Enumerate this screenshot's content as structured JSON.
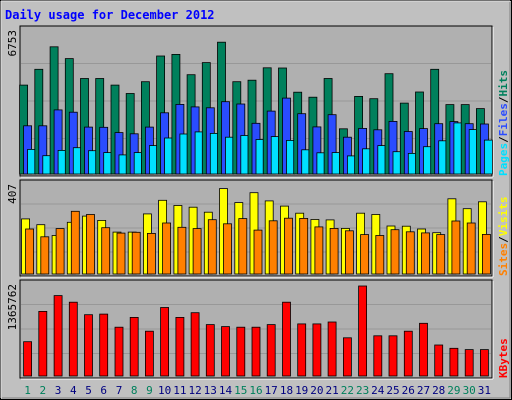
{
  "chart_data": {
    "type": "bar",
    "title": "Daily usage for December 2012",
    "days": [
      "1",
      "2",
      "3",
      "4",
      "5",
      "6",
      "7",
      "8",
      "9",
      "10",
      "11",
      "12",
      "13",
      "14",
      "15",
      "16",
      "17",
      "18",
      "19",
      "20",
      "21",
      "22",
      "23",
      "24",
      "25",
      "26",
      "27",
      "28",
      "29",
      "30",
      "31"
    ],
    "weekend_days": [
      "1",
      "2",
      "8",
      "9",
      "15",
      "16",
      "22",
      "23",
      "29",
      "30"
    ],
    "panels": [
      {
        "id": "top",
        "max_label": "6753",
        "ymax": 6753,
        "series": [
          {
            "name": "Hits",
            "color": "#00805c",
            "values": [
              4230,
              4980,
              6050,
              5490,
              4540,
              4540,
              4230,
              3830,
              4390,
              5610,
              5690,
              4720,
              5300,
              6270,
              4390,
              4460,
              5050,
              5040,
              3890,
              3650,
              4540,
              2150,
              3690,
              3580,
              4770,
              3370,
              3900,
              4980,
              3300,
              3300,
              3110
            ]
          },
          {
            "name": "Files",
            "color": "#2a4cff",
            "values": [
              2290,
              2290,
              3050,
              2940,
              2230,
              2220,
              1970,
              1910,
              2230,
              2910,
              3310,
              3190,
              3150,
              3440,
              3330,
              2410,
              2990,
              3610,
              2870,
              2240,
              2820,
              1750,
              2170,
              2100,
              2500,
              2020,
              2160,
              2390,
              2490,
              2390,
              2380
            ]
          },
          {
            "name": "Pages",
            "color": "#00e0ff",
            "values": [
              1170,
              870,
              1120,
              1250,
              1110,
              1020,
              910,
              1020,
              1350,
              1710,
              1900,
              2000,
              1930,
              1750,
              1830,
              1640,
              1780,
              1600,
              1150,
              1010,
              1020,
              860,
              1200,
              1350,
              1060,
              980,
              1300,
              1580,
              2430,
              2110,
              1610
            ]
          }
        ]
      },
      {
        "id": "mid",
        "max_label": "407",
        "ymax": 407,
        "series": [
          {
            "name": "Visits",
            "color": "#ffff00",
            "values": [
              255,
              228,
              178,
              239,
              268,
              248,
              194,
              194,
              278,
              341,
              317,
              309,
              286,
              395,
              330,
              376,
              338,
              314,
              281,
              252,
              250,
              211,
              281,
              275,
              222,
              221,
              208,
              191,
              348,
              302,
              334
            ]
          },
          {
            "name": "Sites",
            "color": "#ff8000",
            "values": [
              208,
              172,
              210,
              290,
              275,
              214,
              189,
              193,
              188,
              236,
              216,
              210,
              251,
              232,
              256,
              203,
              246,
              258,
              257,
              218,
              211,
              200,
              182,
              178,
              205,
              195,
              190,
              182,
              245,
              236,
              183
            ]
          }
        ]
      },
      {
        "id": "bot",
        "max_label": "1365762",
        "ymax": 1365762,
        "series": [
          {
            "name": "KBytes",
            "color": "#ff0000",
            "values": [
              520000,
              980000,
              1220000,
              1120000,
              930000,
              940000,
              740000,
              890000,
              680000,
              1040000,
              890000,
              960000,
              780000,
              750000,
              740000,
              740000,
              780000,
              1120000,
              790000,
              790000,
              820000,
              580000,
              1365762,
              610000,
              610000,
              680000,
              800000,
              470000,
              420000,
              400000,
              400000
            ]
          }
        ]
      }
    ],
    "legend_labels": [
      {
        "text": "Pages",
        "color": "#00e0ff"
      },
      {
        "text": "/",
        "color": "#000000"
      },
      {
        "text": "Files",
        "color": "#2a4cff"
      },
      {
        "text": "/",
        "color": "#000000"
      },
      {
        "text": "Hits",
        "color": "#00805c"
      },
      {
        "text": "Sites",
        "color": "#ff8000"
      },
      {
        "text": "/",
        "color": "#000000"
      },
      {
        "text": "Visits",
        "color": "#ffff00"
      },
      {
        "text": "KBytes",
        "color": "#ff0000"
      }
    ],
    "grid": true,
    "colors": {
      "title": "#0000ff",
      "weekday": "#000080",
      "weekend": "#00805c",
      "background": "#c0c0c0",
      "panel": "#b0b0b0"
    }
  }
}
